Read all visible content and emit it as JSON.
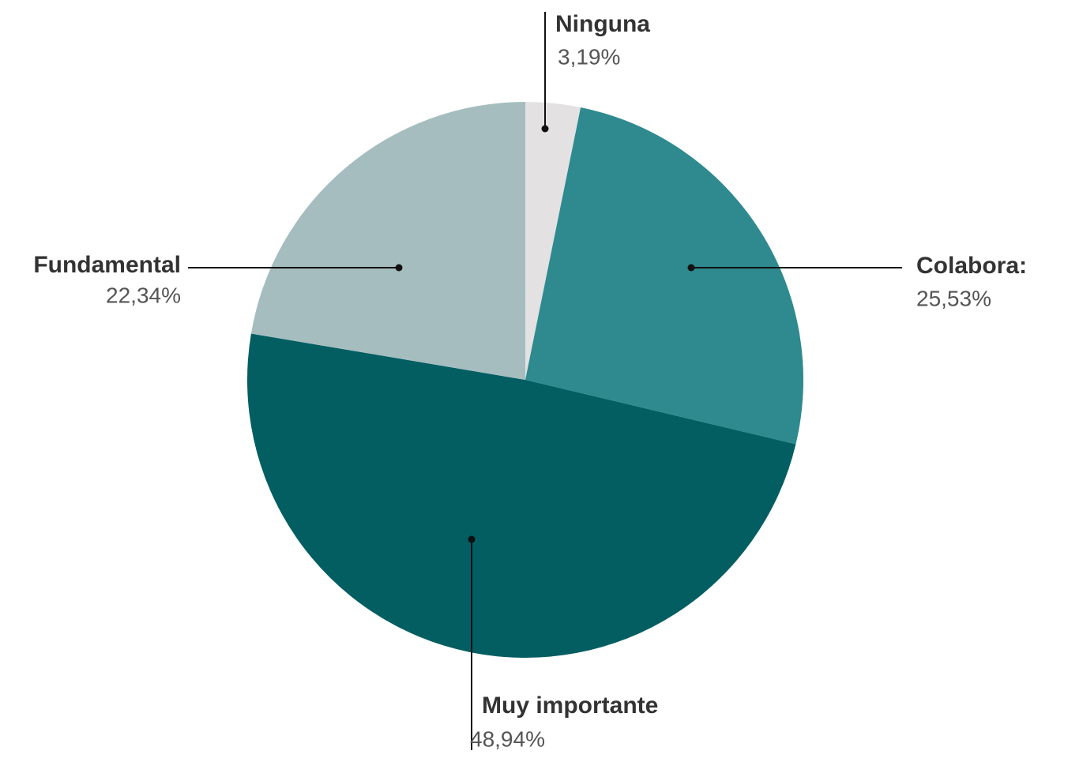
{
  "chart_data": {
    "type": "pie",
    "categories": [
      "Ninguna",
      "Colabora:",
      "Muy importante",
      "Fundamental"
    ],
    "values": [
      3.19,
      25.53,
      48.94,
      22.34
    ],
    "value_labels": [
      "3,19%",
      "25,53%",
      "48,94%",
      "22,34%"
    ],
    "colors": [
      "#e3e1e2",
      "#2e8a8f",
      "#035e62",
      "#a5bdbf"
    ]
  }
}
